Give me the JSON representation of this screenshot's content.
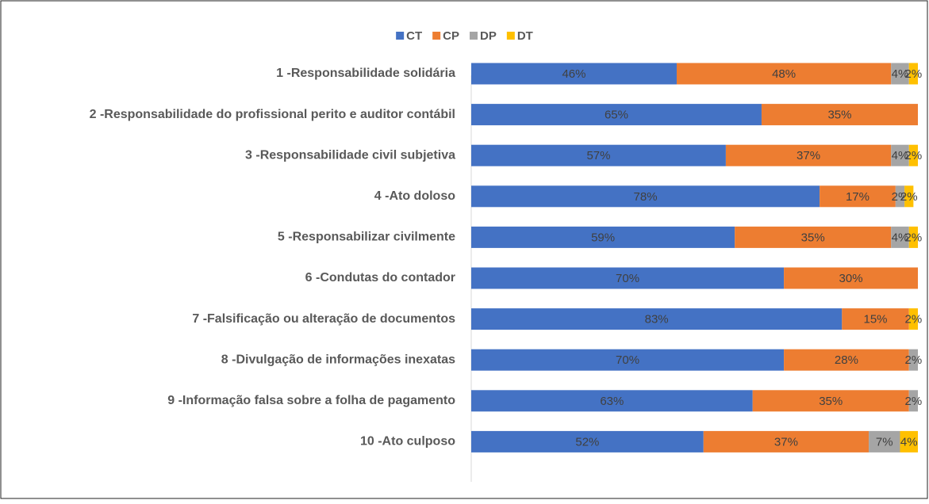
{
  "chart_data": {
    "type": "stacked-bar-horizontal",
    "categories": [
      "1 -Responsabilidade solidária",
      "2 -Responsabilidade do profissional perito e auditor contábil",
      "3 -Responsabilidade civil subjetiva",
      "4 -Ato doloso",
      "5 -Responsabilizar civilmente",
      "6 -Condutas do contador",
      "7 -Falsificação ou alteração de documentos",
      "8 -Divulgação de informações inexatas",
      "9 -Informação falsa sobre a folha de pagamento",
      "10 -Ato culposo"
    ],
    "series": [
      {
        "name": "CT",
        "color": "#4472c4",
        "values": [
          46,
          65,
          57,
          78,
          59,
          70,
          83,
          70,
          63,
          52
        ],
        "value_labels": [
          "46%",
          "65%",
          "57%",
          "78%",
          "59%",
          "70%",
          "83%",
          "70%",
          "63%",
          "52%"
        ]
      },
      {
        "name": "CP",
        "color": "#ed7d31",
        "values": [
          48,
          35,
          37,
          17,
          35,
          30,
          15,
          28,
          35,
          37
        ],
        "value_labels": [
          "48%",
          "35%",
          "37%",
          "17%",
          "35%",
          "30%",
          "15%",
          "28%",
          "35%",
          "37%"
        ]
      },
      {
        "name": "DP",
        "color": "#a5a5a5",
        "values": [
          4,
          null,
          4,
          2,
          4,
          null,
          null,
          2,
          2,
          7
        ],
        "value_labels": [
          "4%",
          null,
          "4%",
          "2%",
          "4%",
          null,
          null,
          "2%",
          "2%",
          "7%"
        ]
      },
      {
        "name": "DT",
        "color": "#ffc000",
        "values": [
          2,
          null,
          2,
          2,
          2,
          null,
          2,
          null,
          null,
          4
        ],
        "value_labels": [
          "2%",
          null,
          "2%",
          "2%",
          "2%",
          null,
          "2%",
          null,
          null,
          "4%"
        ]
      }
    ],
    "xlim": [
      0,
      100
    ],
    "legend": "top"
  }
}
